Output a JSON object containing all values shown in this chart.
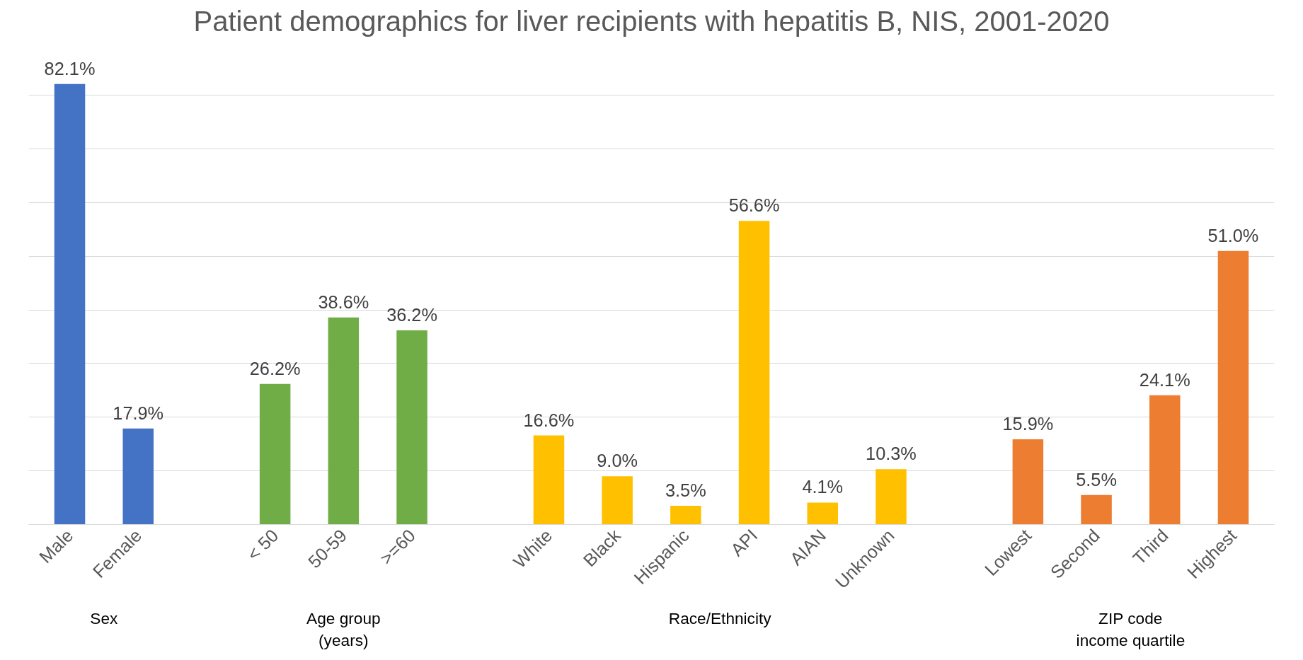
{
  "chart_data": {
    "type": "bar",
    "title": "Patient demographics for liver recipients with hepatitis B, NIS, 2001-2020",
    "categories": [
      "Male",
      "Female",
      null,
      "< 50",
      "50-59",
      ">=60",
      null,
      "White",
      "Black",
      "Hispanic",
      "API",
      "AIAN",
      "Unknown",
      null,
      "Lowest",
      "Second",
      "Third",
      "Highest"
    ],
    "values": [
      82.1,
      17.9,
      null,
      26.2,
      38.6,
      36.2,
      null,
      16.6,
      9.0,
      3.5,
      56.6,
      4.1,
      10.3,
      null,
      15.9,
      5.5,
      24.1,
      51.0
    ],
    "colors": [
      "#4472c4",
      "#4472c4",
      null,
      "#70ad47",
      "#70ad47",
      "#70ad47",
      null,
      "#ffc000",
      "#ffc000",
      "#ffc000",
      "#ffc000",
      "#ffc000",
      "#ffc000",
      null,
      "#ed7d31",
      "#ed7d31",
      "#ed7d31",
      "#ed7d31"
    ],
    "value_labels": [
      "82.1%",
      "17.9%",
      null,
      "26.2%",
      "38.6%",
      "36.2%",
      null,
      "16.6%",
      "9.0%",
      "3.5%",
      "56.6%",
      "4.1%",
      "10.3%",
      null,
      "15.9%",
      "5.5%",
      "24.1%",
      "51.0%"
    ],
    "annotations": [
      "Sex",
      "Age group\n(years)",
      "Race/Ethnicity",
      "ZIP code\nincome quartile"
    ],
    "yticks": [
      0,
      10,
      20,
      30,
      40,
      50,
      60,
      70,
      80
    ],
    "tick_labels": "x",
    "grid": "y"
  }
}
